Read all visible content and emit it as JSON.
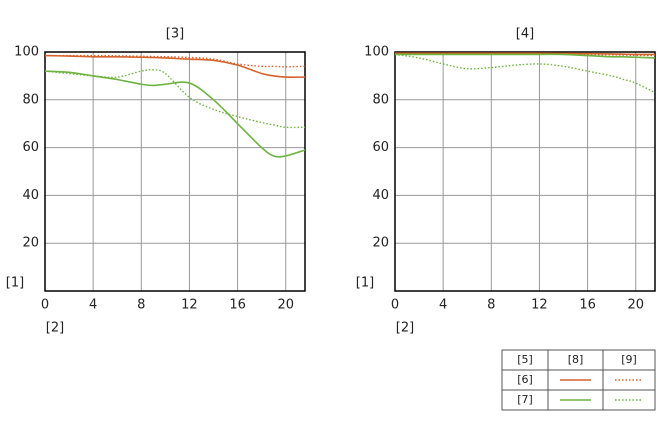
{
  "chart_data": [
    {
      "type": "line",
      "title": "[3]",
      "y_label": "[1]",
      "x_label": "[2]",
      "x": [
        0,
        2,
        4,
        6,
        8,
        9,
        10,
        12,
        14,
        16,
        18,
        19,
        20,
        21.6
      ],
      "xlim": [
        0,
        21.6
      ],
      "ylim": [
        0,
        100
      ],
      "xticks": [
        0,
        4,
        8,
        12,
        16,
        20
      ],
      "yticks": [
        20,
        40,
        60,
        80,
        100
      ],
      "grid": true,
      "series": [
        {
          "color": "#d4622a",
          "style": "solid",
          "values": [
            98.5,
            98.3,
            98,
            98,
            97.8,
            97.7,
            97.5,
            97,
            96.5,
            94.5,
            91,
            90,
            89.5,
            89.5
          ]
        },
        {
          "color": "#d4622a",
          "style": "dotted",
          "values": [
            98.5,
            98.5,
            98.5,
            98.4,
            98.2,
            98.1,
            98,
            97.7,
            97,
            95,
            94,
            94,
            93.8,
            94
          ]
        },
        {
          "color": "#6db33f",
          "style": "solid",
          "values": [
            92,
            91.5,
            90,
            88.5,
            86.5,
            86,
            86.5,
            87,
            80,
            70,
            60,
            56.5,
            56.5,
            59
          ]
        },
        {
          "color": "#6db33f",
          "style": "dotted",
          "values": [
            92,
            91,
            90,
            89.5,
            92,
            92.5,
            91,
            81,
            76,
            73,
            70.5,
            69.5,
            68.5,
            68.5
          ]
        }
      ]
    },
    {
      "type": "line",
      "title": "[4]",
      "y_label": "[1]",
      "x_label": "[2]",
      "x": [
        0,
        2,
        4,
        6,
        8,
        9,
        10,
        12,
        14,
        16,
        18,
        19,
        20,
        21.6
      ],
      "xlim": [
        0,
        21.6
      ],
      "ylim": [
        0,
        100
      ],
      "xticks": [
        0,
        4,
        8,
        12,
        16,
        20
      ],
      "yticks": [
        20,
        40,
        60,
        80,
        100
      ],
      "grid": true,
      "series": [
        {
          "color": "#d4622a",
          "style": "solid",
          "values": [
            99.5,
            99.5,
            99.5,
            99.5,
            99.5,
            99.5,
            99.5,
            99.5,
            99.4,
            99.3,
            99.2,
            99.1,
            99,
            99
          ]
        },
        {
          "color": "#d4622a",
          "style": "dotted",
          "values": [
            99.5,
            99.5,
            99.5,
            99.4,
            99.4,
            99.3,
            99.3,
            99.2,
            99,
            98.9,
            98.8,
            98.7,
            98.6,
            98.5
          ]
        },
        {
          "color": "#6db33f",
          "style": "solid",
          "values": [
            99,
            99,
            99,
            99,
            99,
            99,
            99,
            99,
            99,
            98.5,
            98,
            98,
            97.8,
            97.5
          ]
        },
        {
          "color": "#6db33f",
          "style": "dotted",
          "values": [
            99,
            97.5,
            95,
            93,
            93.5,
            94,
            94.5,
            95,
            94,
            92,
            90,
            88.5,
            87,
            83
          ]
        }
      ]
    }
  ],
  "legend": {
    "corner": "[5]",
    "columns": [
      "[8]",
      "[9]"
    ],
    "rows": [
      "[6]",
      "[7]"
    ]
  }
}
